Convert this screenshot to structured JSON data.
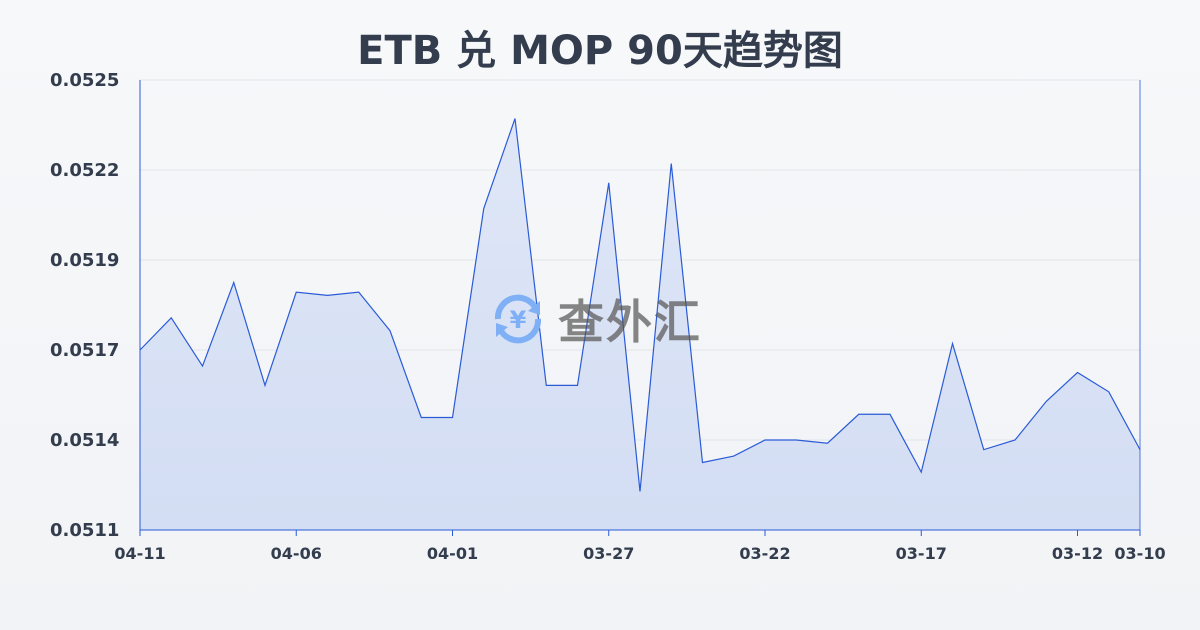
{
  "chart_data": {
    "type": "area",
    "title": "ETB 兑 MOP 90天趋势图",
    "xlabel": "",
    "ylabel": "",
    "categories": [
      "04-11",
      "04-10",
      "04-09",
      "04-08",
      "04-07",
      "04-06",
      "04-05",
      "04-04",
      "04-03",
      "04-02",
      "04-01",
      "03-31",
      "03-30",
      "03-29",
      "03-28",
      "03-27",
      "03-26",
      "03-25",
      "03-24",
      "03-23",
      "03-22",
      "03-21",
      "03-20",
      "03-19",
      "03-18",
      "03-17",
      "03-16",
      "03-15",
      "03-14",
      "03-13",
      "03-12",
      "03-11",
      "03-10"
    ],
    "values": [
      0.05166,
      0.05176,
      0.05161,
      0.05187,
      0.05155,
      0.05184,
      0.05183,
      0.05184,
      0.05172,
      0.05145,
      0.05145,
      0.0521,
      0.05238,
      0.05155,
      0.05155,
      0.05218,
      0.05122,
      0.05224,
      0.05131,
      0.05133,
      0.05138,
      0.05138,
      0.05137,
      0.05146,
      0.05146,
      0.05128,
      0.05168,
      0.05135,
      0.05138,
      0.0515,
      0.05159,
      0.05153,
      0.05135
    ],
    "x_tick_labels": [
      "04-11",
      "04-06",
      "04-01",
      "03-27",
      "03-22",
      "03-17",
      "03-12",
      "03-10"
    ],
    "y_tick_labels": [
      "0.0525",
      "0.0522",
      "0.0519",
      "0.0517",
      "0.0514",
      "0.0511"
    ],
    "ylim": [
      0.0511,
      0.0525
    ],
    "grid": true,
    "line_color": "#2a5bd7",
    "fill_color": "#d6e0f5"
  },
  "watermark": {
    "text": "查外汇",
    "icon": "yen-exchange-icon"
  }
}
